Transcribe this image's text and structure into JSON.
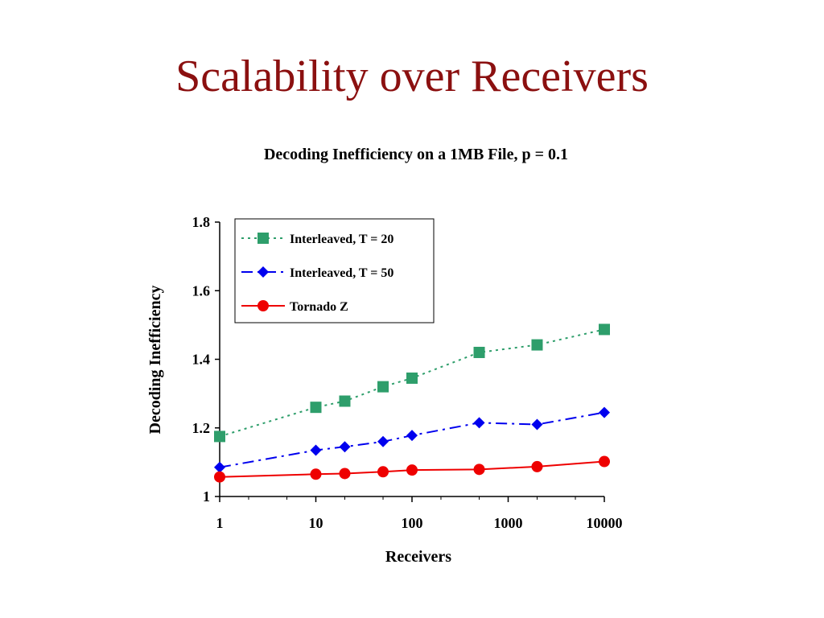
{
  "slide": {
    "title": "Scalability over Receivers"
  },
  "colors": {
    "title": "#8b1010",
    "interleaved_t20": "#2e9e6b",
    "interleaved_t50": "#0000ee",
    "tornado_z": "#ee0000"
  },
  "chart_data": {
    "type": "line",
    "title": "Decoding Inefficiency on a 1MB File, p = 0.1",
    "xlabel": "Receivers",
    "ylabel": "Decoding Inefficiency",
    "xscale": "log",
    "xlim": [
      1,
      10000
    ],
    "ylim": [
      1,
      1.8
    ],
    "x_tick_labels": [
      "1",
      "10",
      "100",
      "1000",
      "10000"
    ],
    "y_tick_labels": [
      "1",
      "1.2",
      "1.4",
      "1.6",
      "1.8"
    ],
    "grid": false,
    "legend_position": "top-left",
    "series": [
      {
        "name": "Interleaved, T = 20",
        "marker": "square",
        "line_style": "dotted",
        "color": "#2e9e6b",
        "x": [
          1,
          10,
          20,
          50,
          100,
          500,
          2000,
          10000
        ],
        "y": [
          1.175,
          1.26,
          1.278,
          1.32,
          1.345,
          1.42,
          1.442,
          1.487
        ]
      },
      {
        "name": "Interleaved, T = 50",
        "marker": "diamond",
        "line_style": "dash-dot",
        "color": "#0000ee",
        "x": [
          1,
          10,
          20,
          50,
          100,
          500,
          2000,
          10000
        ],
        "y": [
          1.085,
          1.135,
          1.145,
          1.16,
          1.178,
          1.215,
          1.21,
          1.245
        ]
      },
      {
        "name": "Tornado Z",
        "marker": "circle",
        "line_style": "solid",
        "color": "#ee0000",
        "x": [
          1,
          10,
          20,
          50,
          100,
          500,
          2000,
          10000
        ],
        "y": [
          1.057,
          1.065,
          1.067,
          1.072,
          1.077,
          1.079,
          1.087,
          1.102
        ]
      }
    ]
  }
}
